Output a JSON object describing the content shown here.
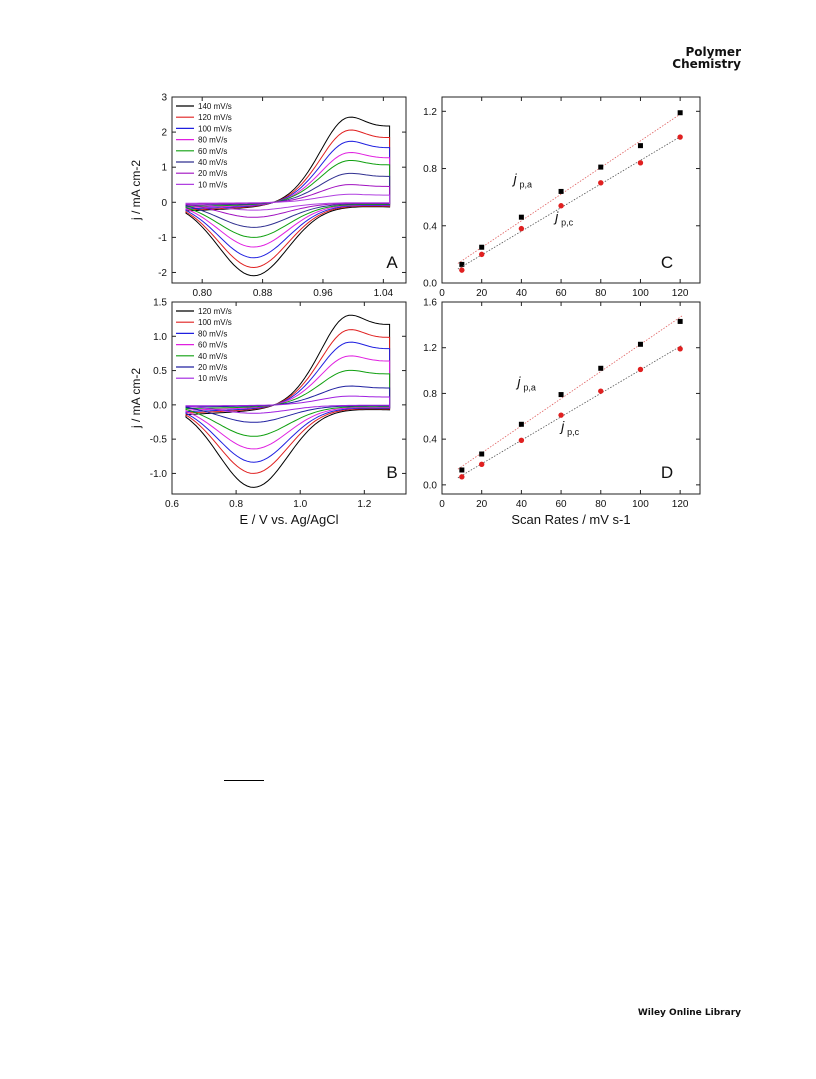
{
  "header": {
    "journal_line1": "Polymer",
    "journal_line2": "Chemistry"
  },
  "footer": {
    "publisher": "Wiley Online Library"
  },
  "chart_data": [
    {
      "panel": "A",
      "type": "line",
      "xlabel": "",
      "ylabel": "j / mA cm-2",
      "xlim": [
        0.76,
        1.07
      ],
      "ylim": [
        -2.3,
        3.0
      ],
      "xticks": [
        "0.80",
        "0.88",
        "0.96",
        "1.04"
      ],
      "yticks": [
        "-2",
        "-1",
        "0",
        "1",
        "2",
        "3"
      ],
      "legend_position": "top-left",
      "series": [
        {
          "name": "140 mV/s",
          "color": "#000000",
          "anodic_peak": 2.65,
          "cathodic_peak": -2.05
        },
        {
          "name": "120 mV/s",
          "color": "#e02020",
          "anodic_peak": 2.25,
          "cathodic_peak": -1.82
        },
        {
          "name": "100 mV/s",
          "color": "#2020e0",
          "anodic_peak": 1.9,
          "cathodic_peak": -1.55
        },
        {
          "name": "80 mV/s",
          "color": "#e020e0",
          "anodic_peak": 1.55,
          "cathodic_peak": -1.25
        },
        {
          "name": "60 mV/s",
          "color": "#10a010",
          "anodic_peak": 1.3,
          "cathodic_peak": -0.98
        },
        {
          "name": "40 mV/s",
          "color": "#303090",
          "anodic_peak": 0.9,
          "cathodic_peak": -0.7
        },
        {
          "name": "20 mV/s",
          "color": "#a010c0",
          "anodic_peak": 0.55,
          "cathodic_peak": -0.42
        },
        {
          "name": "10 mV/s",
          "color": "#b040e0",
          "anodic_peak": 0.25,
          "cathodic_peak": -0.22
        }
      ]
    },
    {
      "panel": "B",
      "type": "line",
      "xlabel": "E / V vs. Ag/AgCl",
      "ylabel": "j / mA cm-2",
      "xlim": [
        0.6,
        1.33
      ],
      "ylim": [
        -1.3,
        1.5
      ],
      "xticks": [
        "0.6",
        "0.8",
        "1.0",
        "1.2"
      ],
      "yticks": [
        "-1.0",
        "-0.5",
        "0.0",
        "0.5",
        "1.0",
        "1.5"
      ],
      "legend_position": "top-left",
      "series": [
        {
          "name": "120 mV/s",
          "color": "#000000",
          "anodic_peak": 1.43,
          "cathodic_peak": -1.18
        },
        {
          "name": "100 mV/s",
          "color": "#e02020",
          "anodic_peak": 1.2,
          "cathodic_peak": -0.98
        },
        {
          "name": "80 mV/s",
          "color": "#2020e0",
          "anodic_peak": 1.0,
          "cathodic_peak": -0.82
        },
        {
          "name": "60 mV/s",
          "color": "#e020e0",
          "anodic_peak": 0.78,
          "cathodic_peak": -0.63
        },
        {
          "name": "40 mV/s",
          "color": "#10a010",
          "anodic_peak": 0.55,
          "cathodic_peak": -0.45
        },
        {
          "name": "20 mV/s",
          "color": "#2020a0",
          "anodic_peak": 0.3,
          "cathodic_peak": -0.25
        },
        {
          "name": "10 mV/s",
          "color": "#a020e0",
          "anodic_peak": 0.14,
          "cathodic_peak": -0.12
        }
      ]
    },
    {
      "panel": "C",
      "type": "scatter",
      "xlabel": "",
      "ylabel": "",
      "xlim": [
        0,
        130
      ],
      "ylim": [
        0,
        1.3
      ],
      "xticks": [
        "0",
        "20",
        "40",
        "60",
        "80",
        "100",
        "120"
      ],
      "yticks": [
        "0.0",
        "0.4",
        "0.8",
        "1.2"
      ],
      "x": [
        10,
        20,
        40,
        60,
        80,
        100,
        120
      ],
      "series": [
        {
          "name": "j_p,a",
          "color": "#000000",
          "values": [
            0.13,
            0.25,
            0.46,
            0.64,
            0.81,
            0.96,
            1.19
          ]
        },
        {
          "name": "j_p,c",
          "color": "#e02020",
          "values": [
            0.09,
            0.2,
            0.38,
            0.54,
            0.7,
            0.84,
            1.02
          ]
        }
      ],
      "annotations": {
        "anodic": "j",
        "anodic_sub": "p,a",
        "cathodic": "j",
        "cathodic_sub": "p,c"
      }
    },
    {
      "panel": "D",
      "type": "scatter",
      "xlabel": "Scan Rates / mV s-1",
      "ylabel": "",
      "xlim": [
        0,
        130
      ],
      "ylim": [
        -0.08,
        1.6
      ],
      "xticks": [
        "0",
        "20",
        "40",
        "60",
        "80",
        "100",
        "120"
      ],
      "yticks": [
        "0.0",
        "0.4",
        "0.8",
        "1.2",
        "1.6"
      ],
      "x": [
        10,
        20,
        40,
        60,
        80,
        100,
        120
      ],
      "series": [
        {
          "name": "j_p,a",
          "color": "#000000",
          "values": [
            0.13,
            0.27,
            0.53,
            0.79,
            1.02,
            1.23,
            1.43
          ]
        },
        {
          "name": "j_p,c",
          "color": "#e02020",
          "values": [
            0.07,
            0.18,
            0.39,
            0.61,
            0.82,
            1.01,
            1.19
          ]
        }
      ],
      "annotations": {
        "anodic": "j",
        "anodic_sub": "p,a",
        "cathodic": "j",
        "cathodic_sub": "p,c"
      }
    }
  ]
}
